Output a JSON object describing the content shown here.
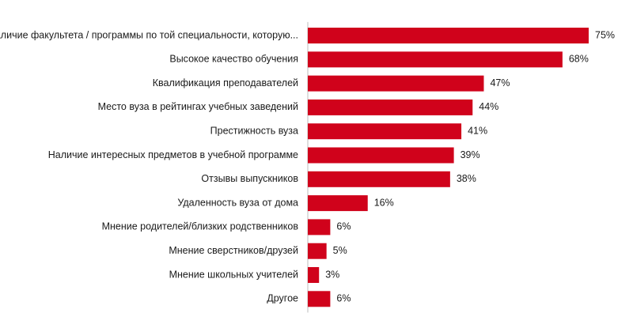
{
  "chart_data": {
    "type": "bar",
    "orientation": "horizontal",
    "categories": [
      "Наличие факультета / программы по той специальности, которую...",
      "Высокое качество обучения",
      "Квалификация преподавателей",
      "Место вуза в рейтингах учебных заведений",
      "Престижность вуза",
      "Наличие интересных предметов в учебной программе",
      "Отзывы выпускников",
      "Удаленность вуза от дома",
      "Мнение родителей/близких родственников",
      "Мнение сверстников/друзей",
      "Мнение школьных учителей",
      "Другое"
    ],
    "values": [
      75,
      68,
      47,
      44,
      41,
      39,
      38,
      16,
      6,
      5,
      3,
      6
    ],
    "value_labels": [
      "75%",
      "68%",
      "47%",
      "44%",
      "41%",
      "39%",
      "38%",
      "16%",
      "6%",
      "5%",
      "3%",
      "6%"
    ],
    "unit": "%",
    "xlim": [
      0,
      75
    ],
    "bar_color": "#d0021b",
    "grid": false,
    "legend": "none",
    "title": "",
    "xlabel": "",
    "ylabel": ""
  }
}
